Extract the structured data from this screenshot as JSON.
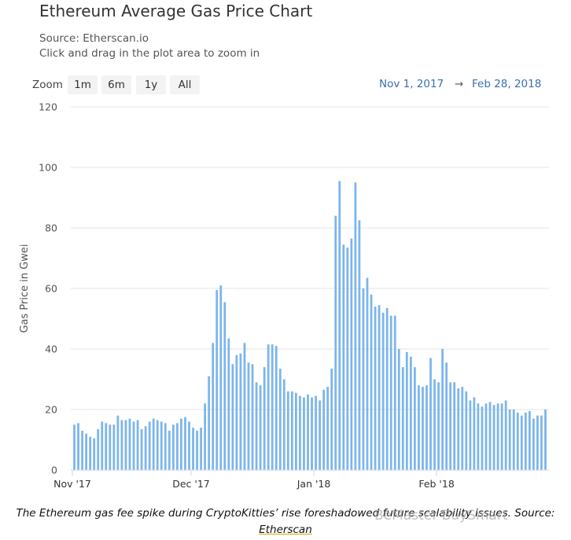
{
  "title": "Ethereum Average Gas Price Chart",
  "source_line": "Source: Etherscan.io",
  "hint_line": "Click and drag in the plot area to zoom in",
  "zoom": {
    "label": "Zoom",
    "buttons": [
      "1m",
      "6m",
      "1y",
      "All"
    ]
  },
  "range": {
    "from": "Nov 1, 2017",
    "arrow": "→",
    "to": "Feb 28, 2018"
  },
  "caption": {
    "text": "The Ethereum gas fee spike during CryptoKitties’ rise foreshadowed future scalability issues. Source:",
    "link": "Etherscan"
  },
  "watermark": "BeMaster BuySmart",
  "colors": {
    "bar": "#7cb5ec",
    "grid": "#e6e6e6",
    "axis": "#ccd6eb",
    "link": "#3a6fb0"
  },
  "chart_data": {
    "type": "bar",
    "ylabel": "Gas Price in Gwei",
    "xlabel": "",
    "ylim": [
      0,
      120
    ],
    "yticks": [
      0,
      20,
      40,
      60,
      80,
      100,
      120
    ],
    "x_start": "2017-11-01",
    "x_ticks": [
      {
        "label": "Nov '17",
        "date": "2017-11-01"
      },
      {
        "label": "Dec '17",
        "date": "2017-12-01"
      },
      {
        "label": "Jan '18",
        "date": "2018-01-01"
      },
      {
        "label": "Feb '18",
        "date": "2018-02-01"
      }
    ],
    "grid": true,
    "legend": "none",
    "values": [
      15,
      15.5,
      13,
      12,
      11,
      10.5,
      13.5,
      16,
      15.5,
      15,
      15,
      18,
      16.5,
      16.5,
      17,
      16,
      16.5,
      13.5,
      14.5,
      16,
      17,
      16.5,
      16,
      15.5,
      13,
      15,
      15.5,
      17,
      17.5,
      16,
      14,
      13,
      14,
      22,
      31,
      42,
      59.5,
      61,
      55.5,
      43.5,
      35,
      38,
      38.5,
      42,
      35.5,
      35,
      29,
      28,
      34,
      41.5,
      41.5,
      41,
      33.5,
      30,
      26,
      26,
      25.5,
      24.5,
      24,
      25,
      24,
      24.5,
      23,
      26.5,
      27.5,
      33.5,
      84,
      95.5,
      74.5,
      73.5,
      76.5,
      95,
      82.5,
      60,
      63.5,
      58,
      54,
      54.5,
      52,
      53.5,
      51,
      51,
      40,
      34,
      39,
      37.5,
      34,
      28,
      27.5,
      28,
      37,
      30,
      29,
      40,
      35.5,
      29,
      29,
      27,
      27.5,
      26,
      23,
      24,
      22,
      21,
      22,
      22.5,
      21.5,
      22,
      22,
      23,
      20,
      20,
      19,
      18,
      19,
      19.5,
      17,
      18,
      18,
      20
    ]
  }
}
